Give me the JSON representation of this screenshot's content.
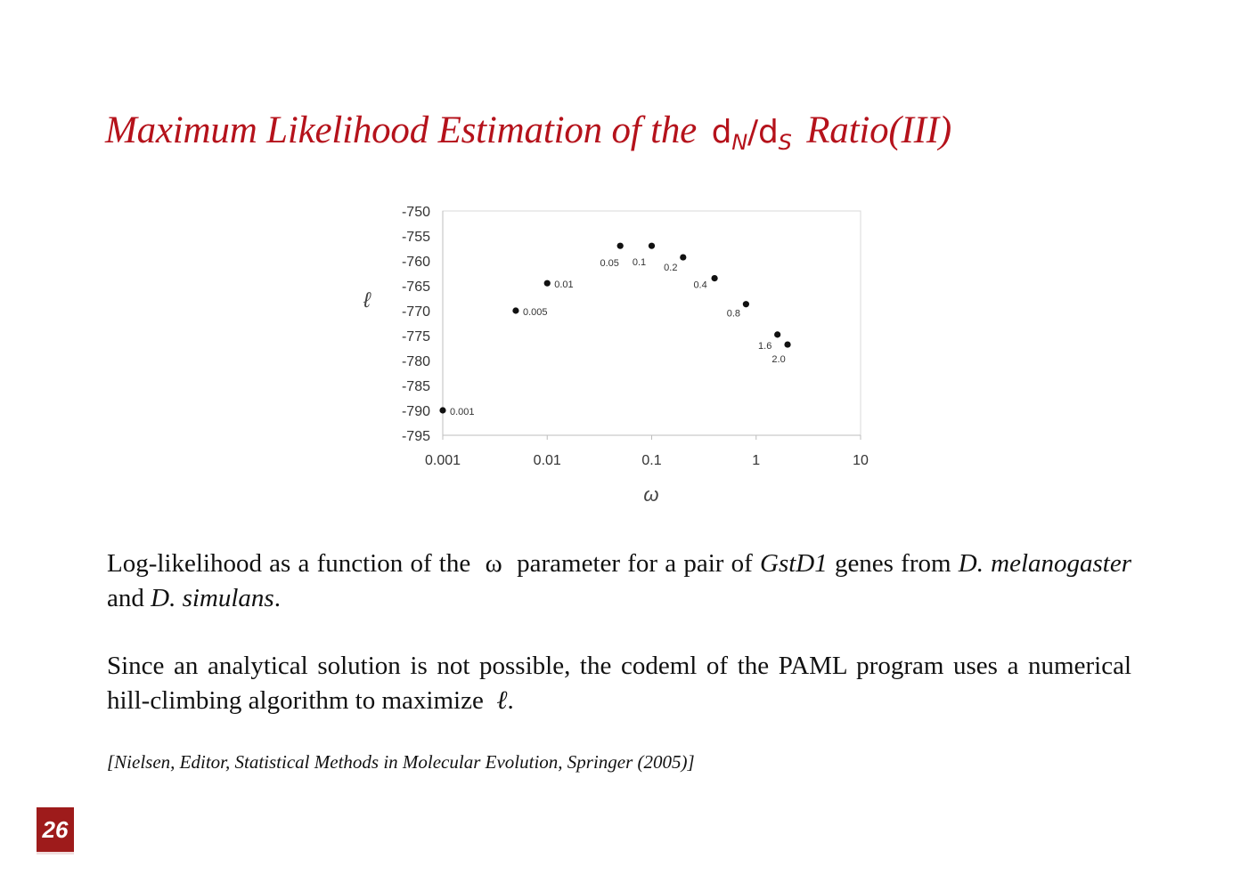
{
  "slide": {
    "title_pre": "Maximum Likelihood Estimation of the",
    "title_math_1": "d",
    "title_math_1_sub": "N",
    "title_math_sep": "/",
    "title_math_2": "d",
    "title_math_2_sub": "S",
    "title_post": "Ratio(III)",
    "page_number": "26"
  },
  "caption": {
    "p1_a": "Log-likelihood as a function of the",
    "p1_omega": "ω",
    "p1_b": "parameter for a pair of",
    "p1_gene": "GstD1",
    "p1_c": "genes from",
    "p1_sp1": "D. melanogaster",
    "p1_and": "and",
    "p1_sp2": "D. simulans",
    "p1_end": ".",
    "p2_a": "Since an analytical solution is not possible, the codeml of the PAML program uses a numerical hill-climbing algorithm to maximize",
    "p2_ell": "ℓ",
    "p2_end": ".",
    "citation": "[Nielsen, Editor, Statistical Methods in Molecular Evolution, Springer (2005)]"
  },
  "chart_data": {
    "type": "scatter",
    "title": "",
    "xlabel": "ω",
    "ylabel": "ℓ",
    "x_scale": "log",
    "xlim": [
      0.001,
      10
    ],
    "ylim": [
      -795,
      -750
    ],
    "xticks": [
      "0.001",
      "0.01",
      "0.1",
      "1",
      "10"
    ],
    "yticks": [
      "-750",
      "-755",
      "-760",
      "-765",
      "-770",
      "-775",
      "-780",
      "-785",
      "-790",
      "-795"
    ],
    "grid": false,
    "points": [
      {
        "x": 0.001,
        "y": -790,
        "label": "0.001"
      },
      {
        "x": 0.005,
        "y": -770,
        "label": "0.005"
      },
      {
        "x": 0.01,
        "y": -764.5,
        "label": "0.01"
      },
      {
        "x": 0.05,
        "y": -757,
        "label": "0.05"
      },
      {
        "x": 0.1,
        "y": -757,
        "label": "0.1"
      },
      {
        "x": 0.2,
        "y": -759.3,
        "label": "0.2"
      },
      {
        "x": 0.4,
        "y": -763.5,
        "label": "0.4"
      },
      {
        "x": 0.8,
        "y": -768.7,
        "label": "0.8"
      },
      {
        "x": 1.6,
        "y": -774.8,
        "label": "1.6"
      },
      {
        "x": 2.0,
        "y": -776.8,
        "label": "2.0"
      }
    ]
  }
}
